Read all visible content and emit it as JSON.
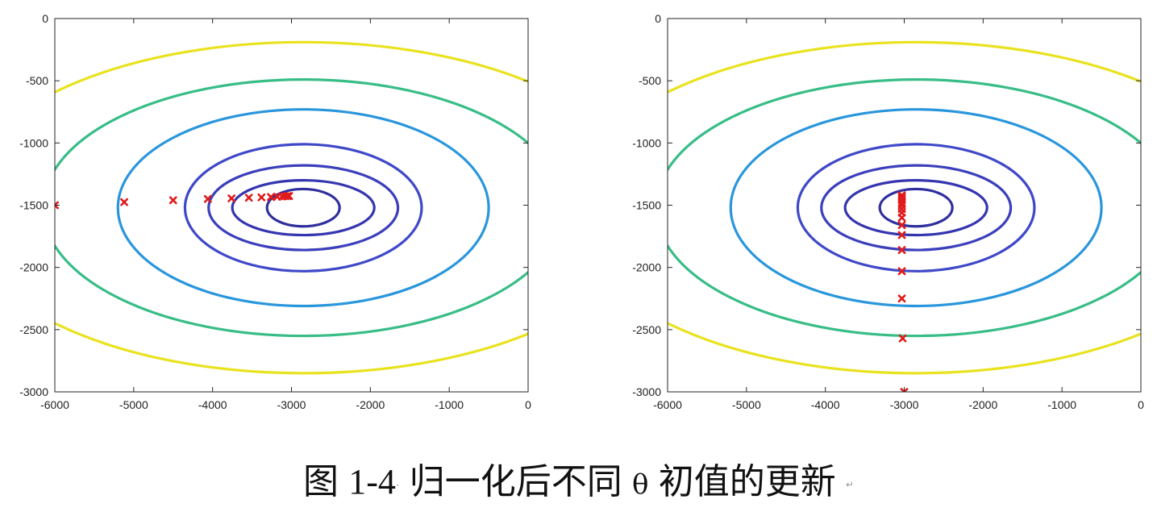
{
  "figure": {
    "caption": {
      "prefix": "图",
      "number": "1-4",
      "dot": "·",
      "text_before": "归一化后不同",
      "symbol": "θ",
      "text_after": "初值的更新",
      "mark": "↵"
    }
  },
  "chart_data": [
    {
      "type": "contour",
      "title": "",
      "xlabel": "",
      "ylabel": "",
      "xlim": [
        -6000,
        0
      ],
      "ylim": [
        -3000,
        0
      ],
      "xticks": [
        -6000,
        -5000,
        -4000,
        -3000,
        -2000,
        -1000,
        0
      ],
      "yticks": [
        0,
        -500,
        -1000,
        -1500,
        -2000,
        -2500,
        -3000
      ],
      "grid": false,
      "contours": {
        "center": [
          -2850,
          -1520
        ],
        "rx": [
          460,
          900,
          1200,
          1500,
          2350,
          3300,
          4400
        ],
        "ry": [
          150,
          220,
          340,
          510,
          790,
          1030,
          1330
        ],
        "colors": [
          "#2f2f9f",
          "#3535b0",
          "#3b3fbc",
          "#3f48c8",
          "#2996dc",
          "#38bd87",
          "#e9e21f"
        ]
      },
      "markers": {
        "color": "#e01b1b",
        "symbol": "x",
        "points": [
          [
            -6000,
            -1500
          ],
          [
            -5120,
            -1475
          ],
          [
            -4500,
            -1460
          ],
          [
            -4060,
            -1450
          ],
          [
            -3760,
            -1445
          ],
          [
            -3540,
            -1440
          ],
          [
            -3380,
            -1437
          ],
          [
            -3260,
            -1434
          ],
          [
            -3180,
            -1432
          ],
          [
            -3120,
            -1430
          ],
          [
            -3080,
            -1428
          ],
          [
            -3050,
            -1427
          ],
          [
            -3030,
            -1426
          ]
        ]
      }
    },
    {
      "type": "contour",
      "title": "",
      "xlabel": "",
      "ylabel": "",
      "xlim": [
        -6000,
        0
      ],
      "ylim": [
        -3000,
        0
      ],
      "xticks": [
        -6000,
        -5000,
        -4000,
        -3000,
        -2000,
        -1000,
        0
      ],
      "yticks": [
        0,
        -500,
        -1000,
        -1500,
        -2000,
        -2500,
        -3000
      ],
      "grid": false,
      "contours": {
        "center": [
          -2850,
          -1520
        ],
        "rx": [
          460,
          900,
          1200,
          1500,
          2350,
          3300,
          4400
        ],
        "ry": [
          150,
          220,
          340,
          510,
          790,
          1030,
          1330
        ],
        "colors": [
          "#2f2f9f",
          "#3535b0",
          "#3b3fbc",
          "#3f48c8",
          "#2996dc",
          "#38bd87",
          "#e9e21f"
        ]
      },
      "markers": {
        "color": "#e01b1b",
        "symbol": "x",
        "points": [
          [
            -3000,
            -3000
          ],
          [
            -3020,
            -2570
          ],
          [
            -3030,
            -2250
          ],
          [
            -3030,
            -2030
          ],
          [
            -3030,
            -1860
          ],
          [
            -3030,
            -1740
          ],
          [
            -3030,
            -1660
          ],
          [
            -3030,
            -1600
          ],
          [
            -3030,
            -1560
          ],
          [
            -3030,
            -1530
          ],
          [
            -3030,
            -1500
          ],
          [
            -3030,
            -1480
          ],
          [
            -3030,
            -1460
          ],
          [
            -3030,
            -1445
          ],
          [
            -3030,
            -1432
          ],
          [
            -3030,
            -1420
          ]
        ]
      }
    }
  ]
}
